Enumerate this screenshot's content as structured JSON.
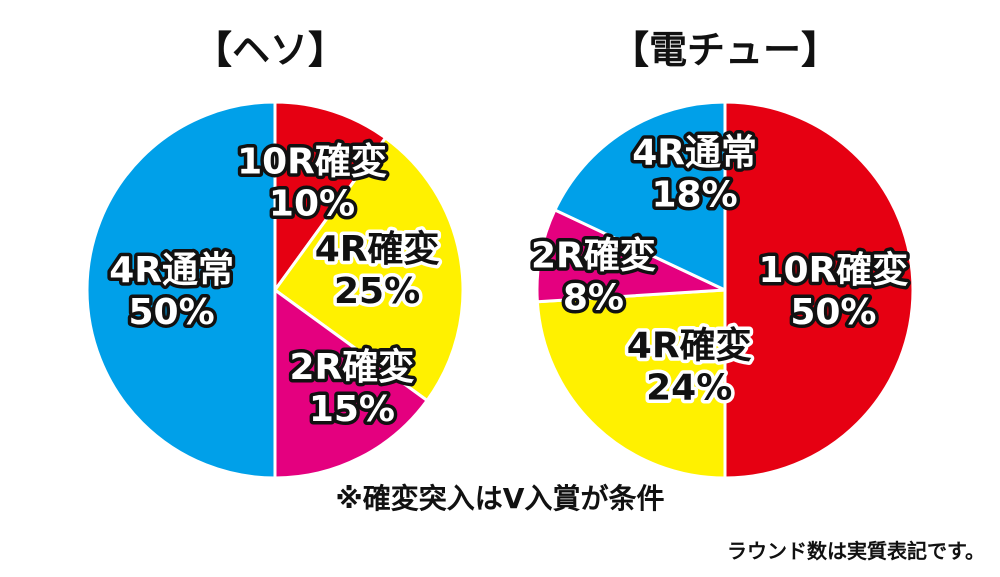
{
  "chart_data": [
    {
      "type": "pie",
      "title": "【ヘソ】",
      "slices": [
        {
          "label": "10R確変",
          "value": 10,
          "value_label": "10%",
          "color": "#e60012"
        },
        {
          "label": "4R確変",
          "value": 25,
          "value_label": "25%",
          "color": "#fff100"
        },
        {
          "label": "2R確変",
          "value": 15,
          "value_label": "15%",
          "color": "#e4007f"
        },
        {
          "label": "4R通常",
          "value": 50,
          "value_label": "50%",
          "color": "#00a0e9"
        }
      ]
    },
    {
      "type": "pie",
      "title": "【電チュー】",
      "slices": [
        {
          "label": "10R確変",
          "value": 50,
          "value_label": "50%",
          "color": "#e60012"
        },
        {
          "label": "4R確変",
          "value": 24,
          "value_label": "24%",
          "color": "#fff100"
        },
        {
          "label": "2R確変",
          "value": 8,
          "value_label": "8%",
          "color": "#e4007f"
        },
        {
          "label": "4R通常",
          "value": 18,
          "value_label": "18%",
          "color": "#00a0e9"
        }
      ]
    }
  ],
  "note": "※確変突入はV入賞が条件",
  "footnote": "ラウンド数は実質表記です。"
}
